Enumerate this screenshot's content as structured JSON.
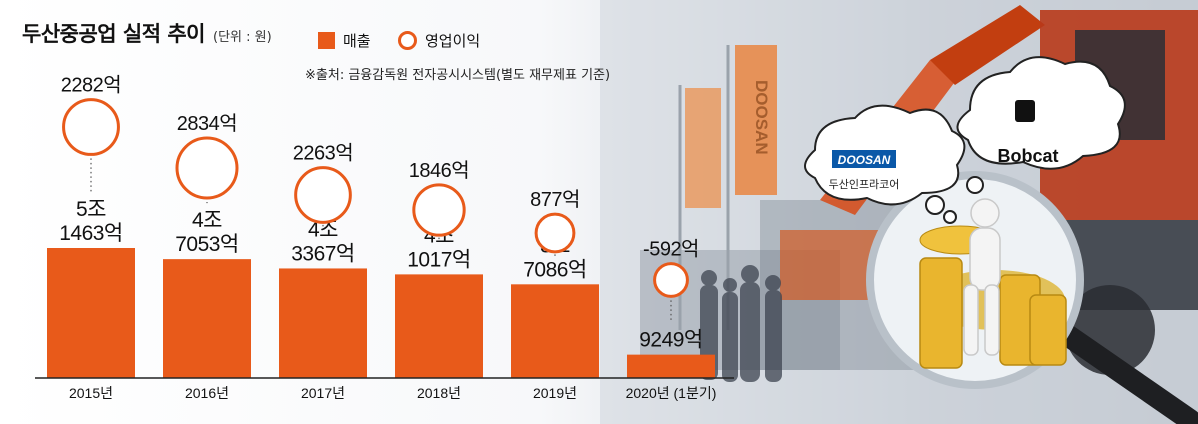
{
  "header": {
    "title": "두산중공업 실적 추이",
    "unit": "(단위 : 원)",
    "source": "※출처: 금융감독원 전자공시시스템(별도 재무제표 기준)"
  },
  "legend": {
    "revenue": "매출",
    "operating_profit": "영업이익"
  },
  "illustration": {
    "doosan_logo": "DOOSAN",
    "doosan_caption": "두산인프라코어",
    "bobcat_logo": "Bobcat",
    "banner_text": "DOOSAN"
  },
  "colors": {
    "bar": "#e85a1a",
    "circle_stroke": "#e85a1a",
    "axis": "#222222"
  },
  "chart_data": {
    "type": "bar",
    "categories": [
      "2015년",
      "2016년",
      "2017년",
      "2018년",
      "2019년",
      "2020년 (1분기)"
    ],
    "series": [
      {
        "name": "매출",
        "values": [
          51463,
          47053,
          43367,
          41017,
          37086,
          9249
        ],
        "unit": "억원",
        "labels": [
          [
            "5조",
            "1463억"
          ],
          [
            "4조",
            "7053억"
          ],
          [
            "4조",
            "3367억"
          ],
          [
            "4조",
            "1017억"
          ],
          [
            "3조",
            "7086억"
          ],
          [
            "9249억"
          ]
        ]
      },
      {
        "name": "영업이익",
        "values": [
          2282,
          2834,
          2263,
          1846,
          877,
          -592
        ],
        "unit": "억원",
        "labels": [
          "2282억",
          "2834억",
          "2263억",
          "1846억",
          "877억",
          "-592억"
        ]
      }
    ],
    "title": "두산중공업 실적 추이",
    "xlabel": "",
    "ylabel": "",
    "grid": false,
    "legend_position": "top"
  }
}
